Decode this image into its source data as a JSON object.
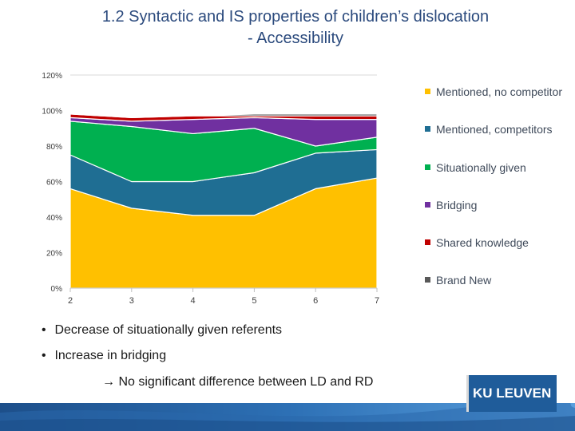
{
  "title": {
    "line1": "1.2 Syntactic and IS properties of children’s dislocation",
    "line2": "- Accessibility"
  },
  "chart_data": {
    "type": "area",
    "stacked": true,
    "x": [
      "2",
      "3",
      "4",
      "5",
      "6",
      "7"
    ],
    "ylim": [
      0,
      120
    ],
    "yticks": [
      "0%",
      "20%",
      "40%",
      "60%",
      "80%",
      "100%",
      "120%"
    ],
    "series": [
      {
        "name": "Mentioned, no competitor",
        "color": "#FFC000",
        "values": [
          56,
          45,
          41,
          41,
          56,
          62
        ]
      },
      {
        "name": "Mentioned, competitors",
        "color": "#1F6E93",
        "values": [
          19,
          15,
          19,
          24,
          20,
          16
        ]
      },
      {
        "name": "Situationally given",
        "color": "#00B050",
        "values": [
          19,
          31,
          27,
          25,
          4,
          7
        ]
      },
      {
        "name": "Bridging",
        "color": "#7030A0",
        "values": [
          2,
          3,
          8,
          6,
          15,
          10
        ]
      },
      {
        "name": "Shared knowledge",
        "color": "#C00000",
        "values": [
          2,
          2,
          2,
          1,
          2,
          2
        ]
      },
      {
        "name": "Brand New",
        "color": "#595959",
        "values": [
          0,
          0,
          0,
          1,
          1,
          1
        ]
      }
    ],
    "legend": "right"
  },
  "bullets": [
    "Decrease of situationally given referents",
    "Increase in bridging"
  ],
  "bullet_glyph": "•",
  "conclusion": "→ No significant difference between LD and RD",
  "logo": {
    "text": "KU LEUVEN",
    "color": "#1F5C9A"
  }
}
